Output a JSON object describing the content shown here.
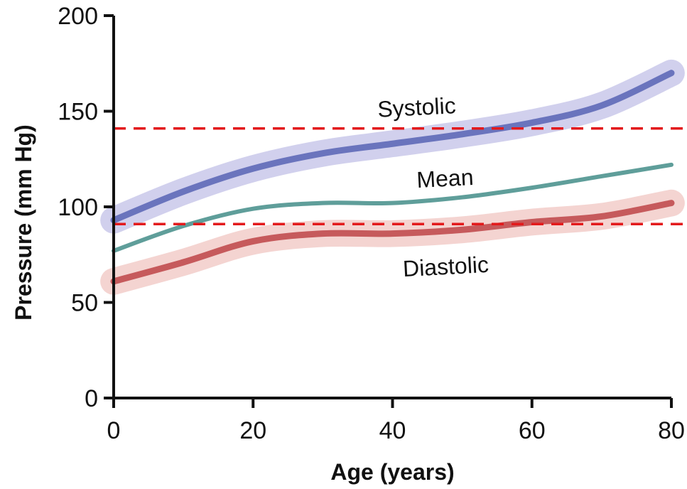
{
  "chart_data": {
    "type": "line",
    "title": "",
    "xlabel": "Age (years)",
    "ylabel": "Pressure (mm Hg)",
    "xlim": [
      0,
      80
    ],
    "ylim": [
      0,
      200
    ],
    "xticks": [
      0,
      20,
      40,
      60,
      80
    ],
    "yticks": [
      0,
      50,
      100,
      150,
      200
    ],
    "xtick_labels": [
      "0",
      "20",
      "40",
      "60",
      "80"
    ],
    "ytick_labels": [
      "0",
      "50",
      "100",
      "150",
      "200"
    ],
    "grid": false,
    "legend": "none",
    "x": [
      0,
      10,
      20,
      30,
      40,
      50,
      60,
      70,
      80
    ],
    "series": [
      {
        "name": "Systolic",
        "values": [
          93,
          108,
          120,
          128,
          133,
          138,
          144,
          153,
          170
        ],
        "color": "#6a74bd",
        "band_color": "#c9c8ea",
        "band_halfwidth": 7
      },
      {
        "name": "Mean",
        "values": [
          77,
          90,
          99,
          102,
          102,
          105,
          110,
          116,
          122
        ],
        "color": "#5f9e9a"
      },
      {
        "name": "Diastolic",
        "values": [
          61,
          71,
          82,
          86,
          86,
          88,
          92,
          95,
          102
        ],
        "color": "#c65a5c",
        "band_color": "#f2cdc9",
        "band_halfwidth": 7
      }
    ],
    "reference_lines": [
      {
        "y": 141,
        "color": "#e31a1c",
        "style": "dashed"
      },
      {
        "y": 91,
        "color": "#e31a1c",
        "style": "dashed"
      }
    ]
  }
}
